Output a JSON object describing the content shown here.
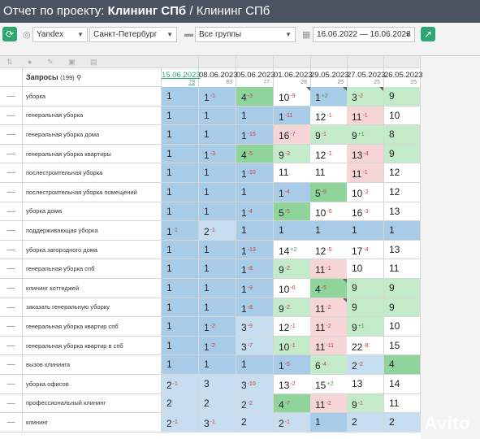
{
  "header": {
    "prefix": "Отчет по проекту: ",
    "project": "Клининг СПб",
    "separator": " / ",
    "subproject": "Клининг СПб"
  },
  "toolbar": {
    "engine": "Yandex",
    "region": "Санкт-Петербург",
    "groups": "Все группы",
    "date_range": "16.06.2022 — 16.06.2023"
  },
  "table": {
    "query_header": "Запросы",
    "query_count": "(199)",
    "dates": [
      {
        "date": "15.06.2023",
        "sub": "79"
      },
      {
        "date": "08.06.2023",
        "sub": "83"
      },
      {
        "date": "05.06.2023",
        "sub": "77"
      },
      {
        "date": "01.06.2023",
        "sub": "28"
      },
      {
        "date": "29.05.2023",
        "sub": "25"
      },
      {
        "date": "27.05.2023",
        "sub": "25"
      },
      {
        "date": "26.05.2023",
        "sub": "25"
      }
    ],
    "rows": [
      {
        "q": "уборка",
        "c": [
          [
            "1",
            "",
            "b",
            0
          ],
          [
            "1",
            "-1",
            "b",
            0
          ],
          [
            "4",
            "-3",
            "g",
            0
          ],
          [
            "10",
            "-9",
            "w",
            1
          ],
          [
            "1",
            "+2",
            "b",
            1
          ],
          [
            "3",
            "-2",
            "lg",
            1
          ],
          [
            "9",
            "",
            "lg",
            0
          ]
        ]
      },
      {
        "q": "генеральная уборка",
        "c": [
          [
            "1",
            "",
            "b",
            0
          ],
          [
            "1",
            "",
            "b",
            0
          ],
          [
            "1",
            "",
            "b",
            0
          ],
          [
            "1",
            "-11",
            "b",
            0
          ],
          [
            "12",
            "-1",
            "w",
            0
          ],
          [
            "11",
            "-1",
            "p",
            0
          ],
          [
            "10",
            "",
            "w",
            0
          ]
        ]
      },
      {
        "q": "генеральная уборка дома",
        "c": [
          [
            "1",
            "",
            "b",
            0
          ],
          [
            "1",
            "",
            "b",
            0
          ],
          [
            "1",
            "-15",
            "b",
            0
          ],
          [
            "16",
            "-7",
            "p",
            0
          ],
          [
            "9",
            "-1",
            "lg",
            0
          ],
          [
            "9",
            "+1",
            "lg",
            0
          ],
          [
            "8",
            "",
            "lg",
            0
          ]
        ]
      },
      {
        "q": "генеральная уборка квартиры",
        "c": [
          [
            "1",
            "",
            "b",
            0
          ],
          [
            "1",
            "-3",
            "b",
            0
          ],
          [
            "4",
            "-5",
            "g",
            0
          ],
          [
            "9",
            "-3",
            "lg",
            0
          ],
          [
            "12",
            "-1",
            "w",
            0
          ],
          [
            "13",
            "-4",
            "p",
            0
          ],
          [
            "9",
            "",
            "lg",
            0
          ]
        ]
      },
      {
        "q": "послестроительная уборка",
        "c": [
          [
            "1",
            "",
            "b",
            0
          ],
          [
            "1",
            "",
            "b",
            0
          ],
          [
            "1",
            "-10",
            "b",
            0
          ],
          [
            "11",
            "",
            "w",
            0
          ],
          [
            "11",
            "",
            "w",
            0
          ],
          [
            "11",
            "-1",
            "p",
            0
          ],
          [
            "12",
            "",
            "w",
            0
          ]
        ]
      },
      {
        "q": "послестроительная уборка помещений",
        "c": [
          [
            "1",
            "",
            "b",
            0
          ],
          [
            "1",
            "",
            "b",
            0
          ],
          [
            "1",
            "",
            "b",
            0
          ],
          [
            "1",
            "-4",
            "b",
            0
          ],
          [
            "5",
            "-5",
            "g",
            0
          ],
          [
            "10",
            "-2",
            "w",
            0
          ],
          [
            "12",
            "",
            "w",
            0
          ]
        ]
      },
      {
        "q": "уборка дома",
        "c": [
          [
            "1",
            "",
            "b",
            0
          ],
          [
            "1",
            "",
            "b",
            0
          ],
          [
            "1",
            "-4",
            "b",
            0
          ],
          [
            "5",
            "-5",
            "g",
            0
          ],
          [
            "10",
            "-6",
            "w",
            0
          ],
          [
            "16",
            "-3",
            "w",
            0
          ],
          [
            "13",
            "",
            "w",
            0
          ]
        ]
      },
      {
        "q": "поддерживающая уборка",
        "c": [
          [
            "1",
            "-1",
            "b",
            0
          ],
          [
            "2",
            "-1",
            "lb",
            0
          ],
          [
            "1",
            "",
            "b",
            0
          ],
          [
            "1",
            "",
            "b",
            0
          ],
          [
            "1",
            "",
            "b",
            0
          ],
          [
            "1",
            "",
            "b",
            0
          ],
          [
            "1",
            "",
            "b",
            0
          ]
        ]
      },
      {
        "q": "уборка загородного дома",
        "c": [
          [
            "1",
            "",
            "b",
            0
          ],
          [
            "1",
            "",
            "b",
            0
          ],
          [
            "1",
            "-13",
            "b",
            0
          ],
          [
            "14",
            "+2",
            "w",
            0
          ],
          [
            "12",
            "-5",
            "w",
            0
          ],
          [
            "17",
            "-4",
            "w",
            0
          ],
          [
            "13",
            "",
            "w",
            0
          ]
        ]
      },
      {
        "q": "генеральная уборка спб",
        "c": [
          [
            "1",
            "",
            "b",
            0
          ],
          [
            "1",
            "",
            "b",
            0
          ],
          [
            "1",
            "-8",
            "b",
            0
          ],
          [
            "9",
            "-2",
            "lg",
            0
          ],
          [
            "11",
            "-1",
            "p",
            0
          ],
          [
            "10",
            "",
            "w",
            0
          ],
          [
            "11",
            "",
            "w",
            0
          ]
        ]
      },
      {
        "q": "клининг коттеджей",
        "c": [
          [
            "1",
            "",
            "b",
            0
          ],
          [
            "1",
            "",
            "b",
            0
          ],
          [
            "1",
            "-9",
            "b",
            0
          ],
          [
            "10",
            "-6",
            "w",
            0
          ],
          [
            "4",
            "-5",
            "g",
            1
          ],
          [
            "9",
            "",
            "lg",
            0
          ],
          [
            "9",
            "",
            "lg",
            0
          ]
        ]
      },
      {
        "q": "заказать генеральную уборку",
        "c": [
          [
            "1",
            "",
            "b",
            0
          ],
          [
            "1",
            "",
            "b",
            0
          ],
          [
            "1",
            "-8",
            "b",
            0
          ],
          [
            "9",
            "-2",
            "lg",
            0
          ],
          [
            "11",
            "-2",
            "p",
            1
          ],
          [
            "9",
            "",
            "lg",
            0
          ],
          [
            "9",
            "",
            "lg",
            0
          ]
        ]
      },
      {
        "q": "генеральная уборка квартир спб",
        "c": [
          [
            "1",
            "",
            "b",
            0
          ],
          [
            "1",
            "-2",
            "b",
            0
          ],
          [
            "3",
            "-9",
            "lb",
            0
          ],
          [
            "12",
            "-1",
            "w",
            0
          ],
          [
            "11",
            "-2",
            "p",
            0
          ],
          [
            "9",
            "+1",
            "lg",
            0
          ],
          [
            "10",
            "",
            "w",
            0
          ]
        ]
      },
      {
        "q": "генеральная уборка квартир в спб",
        "c": [
          [
            "1",
            "",
            "b",
            0
          ],
          [
            "1",
            "-2",
            "b",
            0
          ],
          [
            "3",
            "-7",
            "lb",
            0
          ],
          [
            "10",
            "-1",
            "lg",
            0
          ],
          [
            "11",
            "-11",
            "p",
            0
          ],
          [
            "22",
            "-8",
            "w",
            0
          ],
          [
            "15",
            "",
            "w",
            0
          ]
        ]
      },
      {
        "q": "вызов клининга",
        "c": [
          [
            "1",
            "",
            "b",
            0
          ],
          [
            "1",
            "",
            "b",
            0
          ],
          [
            "1",
            "",
            "b",
            0
          ],
          [
            "1",
            "-5",
            "b",
            0
          ],
          [
            "6",
            "-4",
            "lg",
            0
          ],
          [
            "2",
            "-2",
            "lb",
            0
          ],
          [
            "4",
            "",
            "g",
            0
          ]
        ]
      },
      {
        "q": "уборка офисов",
        "c": [
          [
            "2",
            "-1",
            "lb",
            0
          ],
          [
            "3",
            "",
            "lb",
            0
          ],
          [
            "3",
            "-10",
            "lb",
            0
          ],
          [
            "13",
            "-2",
            "w",
            0
          ],
          [
            "15",
            "+2",
            "w",
            0
          ],
          [
            "13",
            "",
            "w",
            0
          ],
          [
            "14",
            "",
            "w",
            0
          ]
        ]
      },
      {
        "q": "профессиональный клининг",
        "c": [
          [
            "2",
            "",
            "lb",
            0
          ],
          [
            "2",
            "",
            "lb",
            0
          ],
          [
            "2",
            "-2",
            "lb",
            0
          ],
          [
            "4",
            "-7",
            "g",
            0
          ],
          [
            "11",
            "-2",
            "p",
            0
          ],
          [
            "9",
            "-1",
            "lg",
            0
          ],
          [
            "11",
            "",
            "w",
            0
          ]
        ]
      },
      {
        "q": "клининг",
        "c": [
          [
            "2",
            "-1",
            "lb",
            0
          ],
          [
            "3",
            "-1",
            "lb",
            0
          ],
          [
            "2",
            "",
            "lb",
            0
          ],
          [
            "2",
            "-1",
            "lb",
            0
          ],
          [
            "1",
            "",
            "b",
            0
          ],
          [
            "2",
            "",
            "lb",
            0
          ],
          [
            "2",
            "",
            "lb",
            0
          ]
        ]
      }
    ]
  },
  "watermark": "Avito",
  "icons": {
    "refresh": "refresh-icon",
    "globe": "globe-icon",
    "folder": "folder-icon",
    "calendar": "calendar-icon",
    "export": "export-icon",
    "search": "search-icon"
  },
  "colors": {
    "accent": "#2ea672",
    "header_bg": "#4a5360"
  }
}
